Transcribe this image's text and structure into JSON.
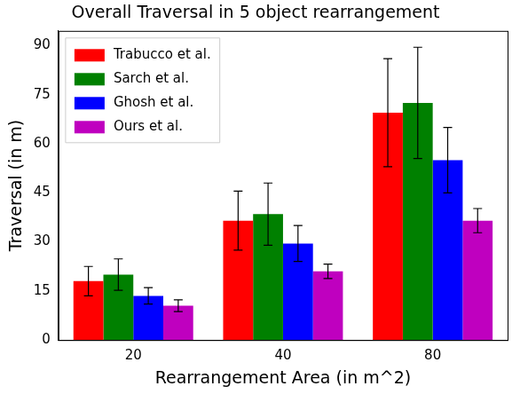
{
  "chart_data": {
    "type": "bar",
    "title": "Overall Traversal in 5 object rearrangement",
    "x_label": "Rearrangement Area (in m^2)",
    "y_label": "Traversal (in m)",
    "categories": [
      "20",
      "40",
      "80"
    ],
    "series": [
      {
        "name": "Trabucco et al.",
        "color": "#ff0000",
        "values": [
          18,
          36.5,
          69.5
        ],
        "errors": [
          4.5,
          9,
          16.5
        ]
      },
      {
        "name": "Sarch et al.",
        "color": "#008000",
        "values": [
          20,
          38.5,
          72.5
        ],
        "errors": [
          4.8,
          9.5,
          17
        ]
      },
      {
        "name": "Ghosh et al.",
        "color": "#0000ff",
        "values": [
          13.5,
          29.5,
          55
        ],
        "errors": [
          2.5,
          5.5,
          10
        ]
      },
      {
        "name": "Ours et al.",
        "color": "#bf00bf",
        "values": [
          10.5,
          21,
          36.5
        ],
        "errors": [
          1.8,
          2.2,
          3.7
        ]
      }
    ],
    "ylim": [
      0,
      94.5
    ],
    "yticks": [
      0,
      15,
      30,
      45,
      60,
      75,
      90
    ],
    "grid": false,
    "legend": "upper left"
  }
}
